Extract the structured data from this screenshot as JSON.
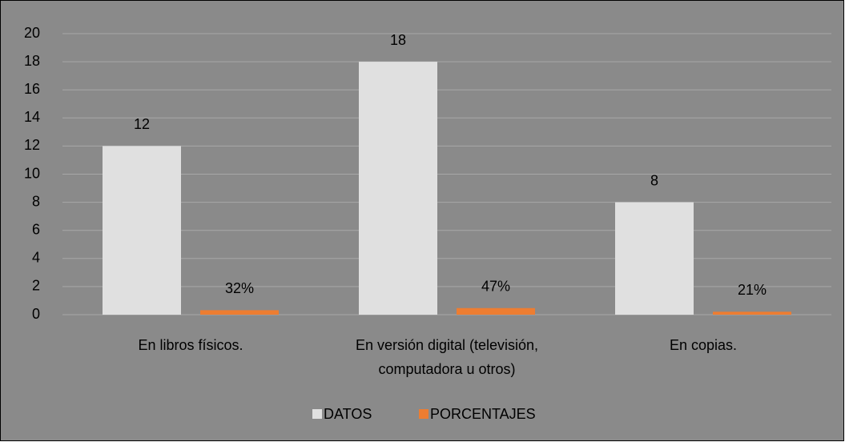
{
  "chart_data": {
    "type": "bar",
    "categories": [
      "En libros físicos.",
      "En versión digital (televisión, computadora u otros)",
      "En copias."
    ],
    "series": [
      {
        "name": "DATOS",
        "color": "#e0e0e0",
        "values": [
          12,
          18,
          8
        ]
      },
      {
        "name": "PORCENTAJES",
        "color": "#ed7d31",
        "values": [
          0.32,
          0.47,
          0.21
        ],
        "value_labels": [
          "32%",
          "47%",
          "21%"
        ]
      }
    ],
    "ylim": [
      0,
      20
    ],
    "yticks": [
      0,
      2,
      4,
      6,
      8,
      10,
      12,
      14,
      16,
      18,
      20
    ],
    "grid": true,
    "legend": "bottom"
  }
}
